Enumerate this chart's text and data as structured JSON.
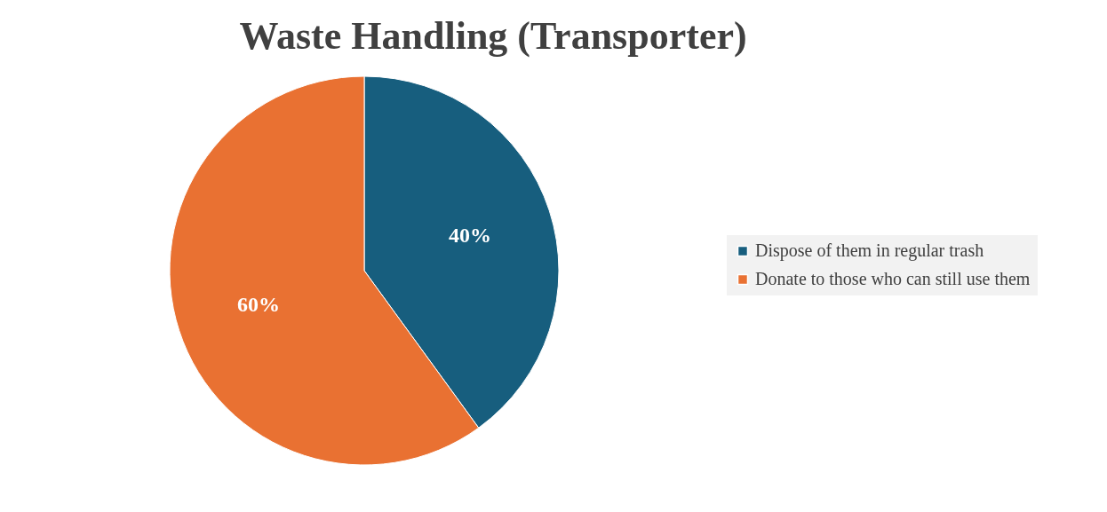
{
  "chart_data": {
    "type": "pie",
    "title": "Waste Handling (Transporter)",
    "categories": [
      "Dispose of them in regular trash",
      "Donate to those who can still use them"
    ],
    "values": [
      40,
      60
    ],
    "colors": [
      "#175e7e",
      "#e97132"
    ],
    "value_labels": [
      "40%",
      "60%"
    ],
    "legend": "right"
  }
}
